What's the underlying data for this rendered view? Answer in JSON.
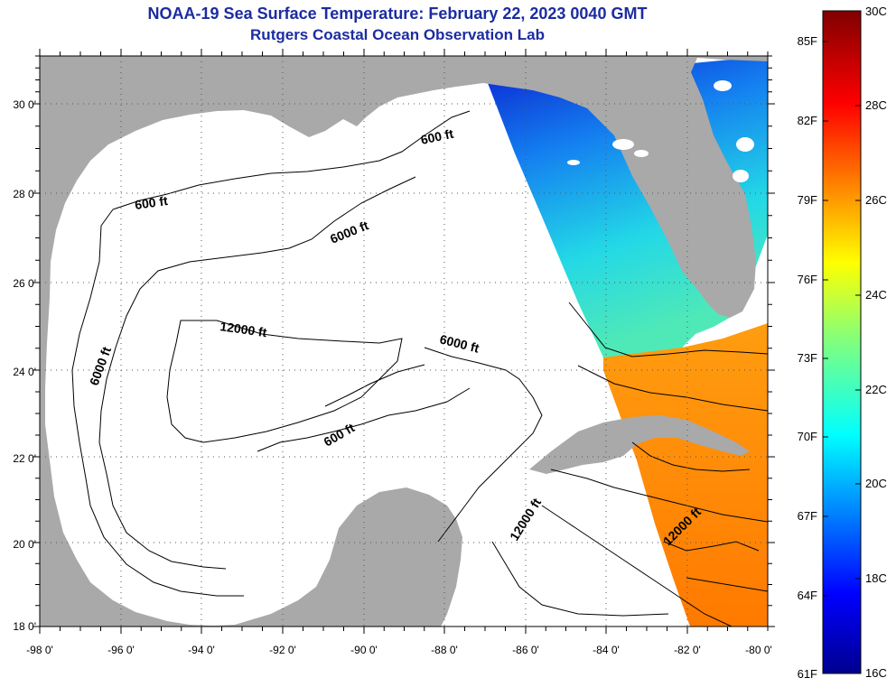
{
  "header": {
    "title": "NOAA-19 Sea Surface Temperature:  February 22, 2023 0040 GMT",
    "subtitle": "Rutgers Coastal Ocean Observation Lab"
  },
  "map": {
    "lon_ticks": [
      "-98 0'",
      "-96 0'",
      "-94 0'",
      "-92 0'",
      "-90 0'",
      "-88 0'",
      "-86 0'",
      "-84 0'",
      "-82 0'",
      "-80 0'"
    ],
    "lat_ticks": [
      "18 0'",
      "20 0'",
      "22 0'",
      "24 0'",
      "26 0'",
      "28 0'",
      "30 0'"
    ],
    "contour_labels": [
      "600 ft",
      "600 ft",
      "6000 ft",
      "12000 ft",
      "6000 ft",
      "6000 ft",
      "600 ft",
      "12000 ft",
      "12000 ft"
    ],
    "colors": {
      "land": "#a9a9a9",
      "water": "#ffffff",
      "contour": "#000000",
      "grid": "#555555"
    }
  },
  "colorbar": {
    "fahrenheit_labels": [
      "85F",
      "82F",
      "79F",
      "76F",
      "73F",
      "70F",
      "67F",
      "64F",
      "61F"
    ],
    "celsius_labels": [
      "30C",
      "28C",
      "26C",
      "24C",
      "22C",
      "20C",
      "18C",
      "16C"
    ],
    "range_c": [
      16,
      30
    ],
    "colormap": "jet"
  }
}
